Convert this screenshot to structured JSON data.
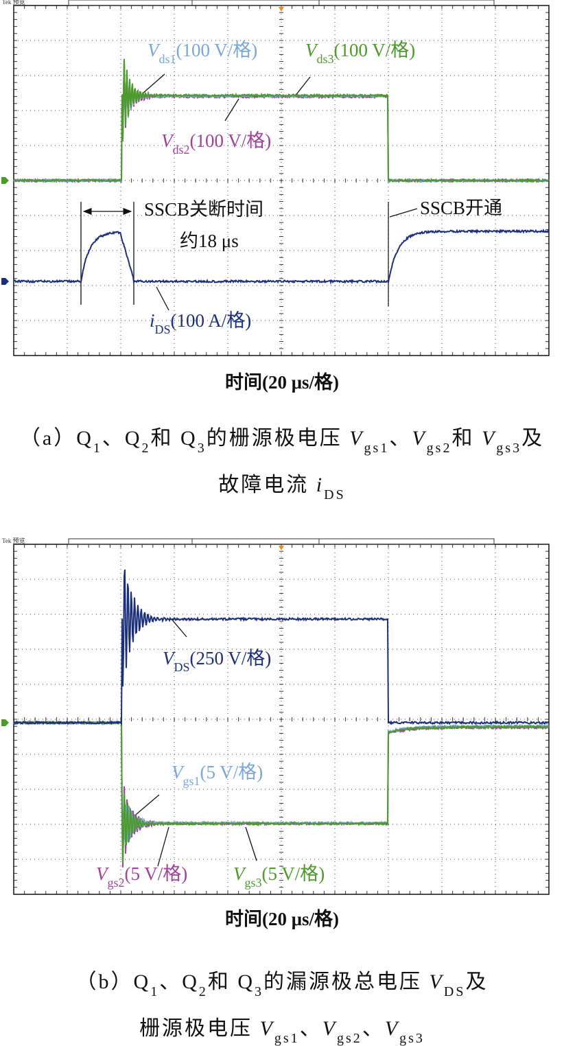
{
  "panels": [
    {
      "scope_label": "Tek 预览",
      "annotations": [
        [
          {
            "italic": "V"
          },
          {
            "sub": "ds1"
          },
          {
            "text": "(100 V/格)"
          }
        ],
        [
          {
            "italic": "V"
          },
          {
            "sub": "ds3"
          },
          {
            "text": "(100 V/格)"
          }
        ],
        [
          {
            "italic": "V"
          },
          {
            "sub": "ds2"
          },
          {
            "text": "(100 V/格)"
          }
        ],
        [
          {
            "text": "SSCB关断时间"
          }
        ],
        [
          {
            "text": "约18 μs"
          }
        ],
        [
          {
            "text": "SSCB开通"
          }
        ],
        [
          {
            "italic": "i"
          },
          {
            "sub": "DS"
          },
          {
            "text": "(100 A/格)"
          }
        ]
      ],
      "x_label": "时间(20 μs/格)",
      "caption": [
        [
          {
            "text": "（a）Q"
          },
          {
            "sub": "1"
          },
          {
            "text": "、Q"
          },
          {
            "sub": "2"
          },
          {
            "text": "和 Q"
          },
          {
            "sub": "3"
          },
          {
            "text": "的栅源极电压 "
          },
          {
            "italic": "V"
          },
          {
            "sub": "gs1"
          },
          {
            "text": "、"
          },
          {
            "italic": "V"
          },
          {
            "sub": "gs2"
          },
          {
            "text": "和 "
          },
          {
            "italic": "V"
          },
          {
            "sub": "gs3"
          },
          {
            "text": "及"
          }
        ],
        [
          {
            "text": "故障电流 "
          },
          {
            "italic": "i"
          },
          {
            "sub": "DS"
          }
        ]
      ]
    },
    {
      "scope_label": "Tek 预览",
      "annotations": [
        [
          {
            "italic": "V"
          },
          {
            "sub": "DS"
          },
          {
            "text": "(250 V/格)"
          }
        ],
        [
          {
            "italic": "V"
          },
          {
            "sub": "gs1"
          },
          {
            "text": "(5 V/格)"
          }
        ],
        [
          {
            "italic": "V"
          },
          {
            "sub": "gs2"
          },
          {
            "text": "(5 V/格)"
          }
        ],
        [
          {
            "italic": "V"
          },
          {
            "sub": "gs3"
          },
          {
            "text": "(5 V/格)"
          }
        ]
      ],
      "x_label": "时间(20 μs/格)",
      "caption": [
        [
          {
            "text": "（b）Q"
          },
          {
            "sub": "1"
          },
          {
            "text": "、Q"
          },
          {
            "sub": "2"
          },
          {
            "text": "和 Q"
          },
          {
            "sub": "3"
          },
          {
            "text": "的漏源极总电压 "
          },
          {
            "italic": "V"
          },
          {
            "sub": "DS"
          },
          {
            "text": "及"
          }
        ],
        [
          {
            "text": "栅源极电压 "
          },
          {
            "italic": "V"
          },
          {
            "sub": "gs1"
          },
          {
            "text": "、"
          },
          {
            "italic": "V"
          },
          {
            "sub": "gs2"
          },
          {
            "text": "、"
          },
          {
            "italic": "V"
          },
          {
            "sub": "gs3"
          }
        ]
      ]
    }
  ]
}
